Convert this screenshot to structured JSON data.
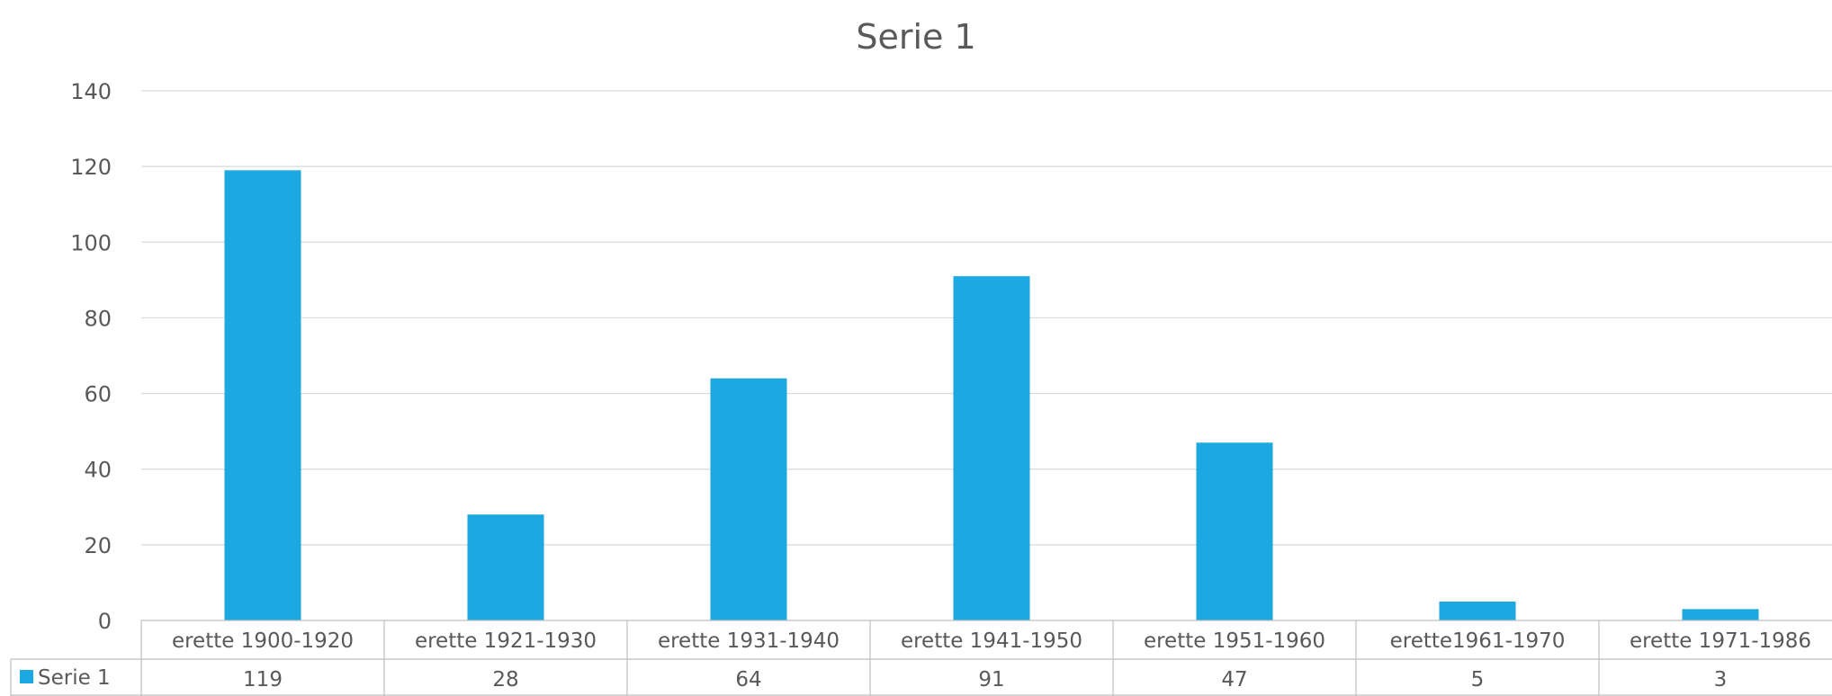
{
  "chart_data": {
    "type": "bar",
    "title": "Serie 1",
    "xlabel": "",
    "ylabel": "",
    "categories": [
      "erette 1900-1920",
      "erette 1921-1930",
      "erette 1931-1940",
      "erette 1941-1950",
      "erette 1951-1960",
      "erette1961-1970",
      "erette 1971-1986"
    ],
    "series": [
      {
        "name": "Serie 1",
        "values": [
          119,
          28,
          64,
          91,
          47,
          5,
          3
        ],
        "color": "#1CA8E0"
      }
    ],
    "ylim": [
      0,
      140
    ],
    "yticks": [
      0,
      20,
      40,
      60,
      80,
      100,
      120,
      140
    ],
    "grid": true,
    "legend": "data-table-left"
  }
}
